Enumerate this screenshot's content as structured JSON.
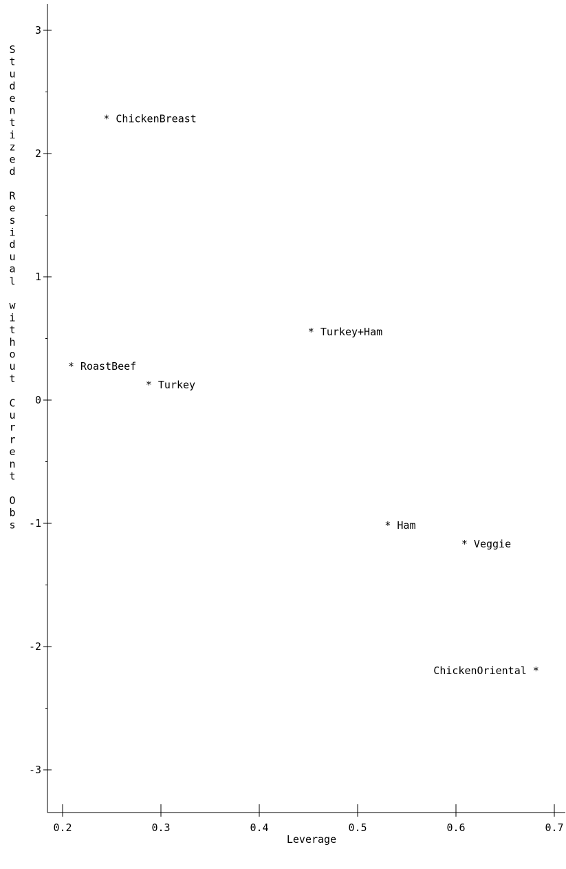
{
  "chart_data": {
    "type": "scatter",
    "xlabel": "Leverage",
    "ylabel": "Studentized Residual without Current Obs",
    "xlim": [
      0.2,
      0.7
    ],
    "ylim": [
      -3,
      3
    ],
    "x_ticks": [
      "0.2",
      "0.3",
      "0.4",
      "0.5",
      "0.6",
      "0.7"
    ],
    "y_ticks": [
      "3",
      "2",
      "1",
      "0",
      "-1",
      "-2",
      "-3"
    ],
    "marker": "*",
    "points": [
      {
        "label": "ChickenBreast",
        "x": 0.245,
        "y": 2.3,
        "label_position": "right"
      },
      {
        "label": "Turkey+Ham",
        "x": 0.453,
        "y": 0.57,
        "label_position": "right"
      },
      {
        "label": "RoastBeef",
        "x": 0.209,
        "y": 0.29,
        "label_position": "right"
      },
      {
        "label": "Turkey",
        "x": 0.288,
        "y": 0.14,
        "label_position": "right"
      },
      {
        "label": "Ham",
        "x": 0.531,
        "y": -1.0,
        "label_position": "right"
      },
      {
        "label": "Veggie",
        "x": 0.609,
        "y": -1.15,
        "label_position": "right"
      },
      {
        "label": "ChickenOriental",
        "x": 0.681,
        "y": -2.18,
        "label_position": "left"
      }
    ],
    "grid": false,
    "legend": "none"
  }
}
